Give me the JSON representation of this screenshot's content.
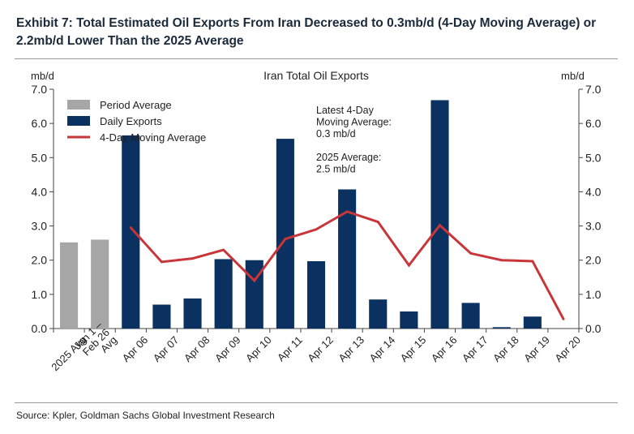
{
  "exhibit_title": "Exhibit 7: Total Estimated Oil Exports From Iran Decreased to 0.3mb/d (4-Day Moving Average) or 2.2mb/d Lower Than the 2025 Average",
  "source": "Source: Kpler, Goldman Sachs Global Investment Research",
  "chart_data": {
    "type": "bar",
    "title": "Iran Total Oil Exports",
    "ylabel_left": "mb/d",
    "ylabel_right": "mb/d",
    "ylim": [
      0,
      7
    ],
    "yticks": [
      "0.0",
      "1.0",
      "2.0",
      "3.0",
      "4.0",
      "5.0",
      "6.0",
      "7.0"
    ],
    "categories": [
      "2025 Avg",
      "Jan 1 – Feb 26 Avg",
      "Apr 06",
      "Apr 07",
      "Apr 08",
      "Apr 09",
      "Apr 10",
      "Apr 11",
      "Apr 12",
      "Apr 13",
      "Apr 14",
      "Apr 15",
      "Apr 16",
      "Apr 17",
      "Apr 18",
      "Apr 19",
      "Apr 20"
    ],
    "category_labels": [
      [
        "2025 Avg"
      ],
      [
        "Jan 1 –",
        "Feb 26",
        "Avg"
      ],
      [
        "Apr 06"
      ],
      [
        "Apr 07"
      ],
      [
        "Apr 08"
      ],
      [
        "Apr 09"
      ],
      [
        "Apr 10"
      ],
      [
        "Apr 11"
      ],
      [
        "Apr 12"
      ],
      [
        "Apr 13"
      ],
      [
        "Apr 14"
      ],
      [
        "Apr 15"
      ],
      [
        "Apr 16"
      ],
      [
        "Apr 17"
      ],
      [
        "Apr 18"
      ],
      [
        "Apr 19"
      ],
      [
        "Apr 20"
      ]
    ],
    "series": [
      {
        "name": "Period Average",
        "type": "bar",
        "color": "#a6a6a6",
        "values": [
          2.52,
          2.6,
          null,
          null,
          null,
          null,
          null,
          null,
          null,
          null,
          null,
          null,
          null,
          null,
          null,
          null,
          null
        ]
      },
      {
        "name": "Daily Exports",
        "type": "bar",
        "color": "#0b3160",
        "values": [
          null,
          null,
          5.65,
          0.7,
          0.88,
          2.03,
          2.0,
          5.55,
          1.97,
          4.07,
          0.85,
          0.5,
          6.68,
          0.75,
          0.04,
          0.35,
          0
        ]
      },
      {
        "name": "4-Day Moving Average",
        "type": "line",
        "color": "#c8363a",
        "values": [
          null,
          null,
          2.95,
          1.95,
          2.05,
          2.3,
          1.4,
          2.62,
          2.9,
          3.42,
          3.12,
          1.85,
          3.02,
          2.2,
          2.0,
          1.97,
          0.28
        ]
      }
    ],
    "annotations": [
      "Latest 4-Day",
      "Moving Average:",
      "0.3 mb/d",
      "",
      "2025 Average:",
      "2.5 mb/d"
    ],
    "legend_placement": "top-left",
    "grid": false
  }
}
